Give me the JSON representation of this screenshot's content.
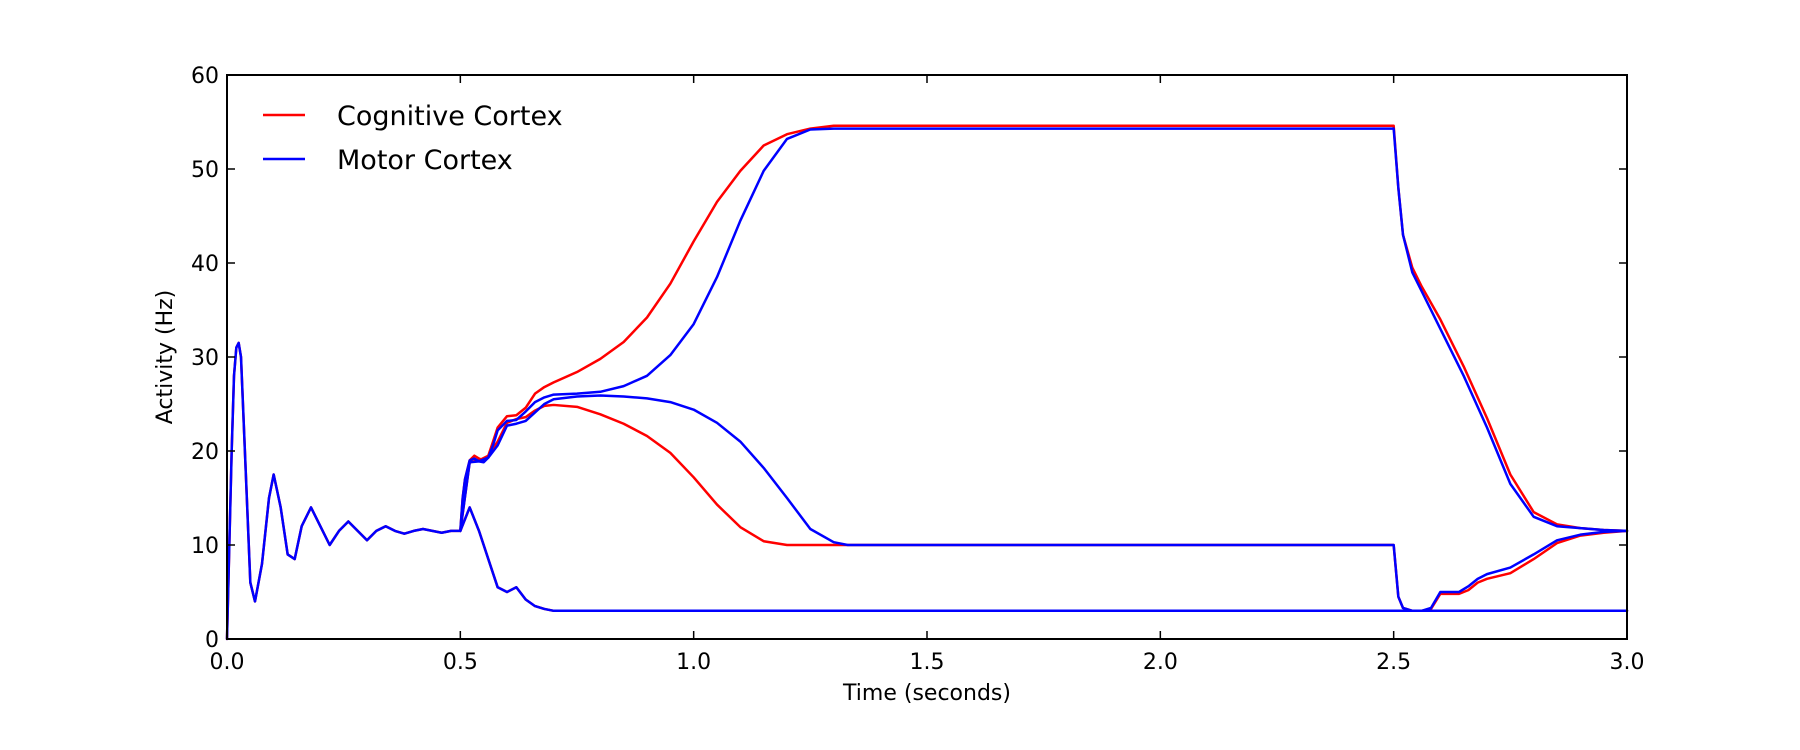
{
  "chart_data": {
    "type": "line",
    "xlabel": "Time (seconds)",
    "ylabel": "Activity (Hz)",
    "xlim": [
      0.0,
      3.0
    ],
    "ylim": [
      0,
      60
    ],
    "xticks": [
      "0.0",
      "0.5",
      "1.0",
      "1.5",
      "2.0",
      "2.5",
      "3.0"
    ],
    "yticks": [
      "0",
      "10",
      "20",
      "30",
      "40",
      "50",
      "60"
    ],
    "grid": false,
    "legend": {
      "position": "top-left",
      "entries": [
        {
          "name": "Cognitive Cortex",
          "color": "#ff0000"
        },
        {
          "name": "Motor Cortex",
          "color": "#0000ff"
        }
      ]
    },
    "series": [
      {
        "name": "Cognitive Cortex",
        "color": "#ff0000",
        "x": [
          0.0,
          0.005,
          0.01,
          0.015,
          0.02,
          0.025,
          0.03,
          0.04,
          0.05,
          0.06,
          0.075,
          0.09,
          0.1,
          0.115,
          0.13,
          0.145,
          0.16,
          0.18,
          0.2,
          0.22,
          0.24,
          0.26,
          0.28,
          0.3,
          0.32,
          0.34,
          0.36,
          0.38,
          0.4,
          0.42,
          0.44,
          0.46,
          0.48,
          0.5,
          0.505,
          0.51,
          0.52,
          0.53,
          0.54,
          0.55,
          0.56,
          0.57,
          0.58,
          0.6,
          0.62,
          0.64,
          0.66,
          0.68,
          0.7,
          0.75,
          0.8,
          0.85,
          0.9,
          0.95,
          1.0,
          1.05,
          1.1,
          1.15,
          1.2,
          1.25,
          1.3,
          1.35,
          1.4,
          1.5,
          2.0,
          2.49,
          2.5,
          2.51,
          2.52,
          2.54,
          2.56,
          2.6,
          2.65,
          2.7,
          2.75,
          2.8,
          2.85,
          2.9,
          2.95,
          3.0
        ],
        "y": [
          0,
          10,
          20,
          28,
          31,
          31.5,
          30,
          18,
          6,
          4,
          8,
          15,
          17.5,
          14,
          9,
          8.5,
          12,
          14,
          12,
          10,
          11.5,
          12.5,
          11.5,
          10.5,
          11.5,
          12.0,
          11.5,
          11.2,
          11.5,
          11.7,
          11.5,
          11.3,
          11.5,
          11.5,
          15,
          17,
          19,
          19.5,
          19.2,
          19,
          19.5,
          21,
          22.5,
          23.7,
          23.8,
          24.6,
          26.1,
          26.8,
          27.3,
          28.4,
          29.8,
          31.6,
          34.2,
          37.8,
          42.3,
          46.5,
          49.8,
          52.5,
          53.7,
          54.3,
          54.6,
          54.6,
          54.6,
          54.6,
          54.6,
          54.6,
          54.6,
          48,
          43,
          39.5,
          37.5,
          34,
          29,
          23.5,
          17.5,
          13.5,
          12.2,
          11.8,
          11.6,
          11.5
        ]
      },
      {
        "name": "Cognitive Cortex",
        "color": "#ff0000",
        "x": [
          0.5,
          0.52,
          0.54,
          0.56,
          0.58,
          0.6,
          0.62,
          0.64,
          0.66,
          0.68,
          0.7,
          0.75,
          0.8,
          0.85,
          0.9,
          0.95,
          1.0,
          1.05,
          1.1,
          1.15,
          1.2,
          1.23,
          1.25,
          1.3,
          1.5,
          2.0,
          2.49,
          2.5,
          2.51,
          2.52,
          2.53,
          2.55,
          2.57,
          2.6,
          2.62,
          2.65,
          2.7,
          2.75,
          2.8,
          2.85,
          2.9,
          2.95,
          3.0
        ],
        "y": [
          11.5,
          14,
          11.5,
          8.5,
          5.5,
          5.0,
          5.5,
          4.2,
          3.5,
          3.2,
          3.0,
          3.0,
          3.0,
          3.0,
          3.0,
          3.0,
          3.0,
          3.0,
          3.0,
          3.0,
          3.0,
          3.0,
          3.0,
          3.0,
          3.0,
          3.0,
          3.0,
          3.0,
          3.0,
          3.0,
          3.0,
          3.0,
          3.0,
          3.0,
          3.0,
          3.0,
          3.0,
          3.0,
          3.0,
          3.0,
          3.0,
          3.0,
          3.0
        ]
      },
      {
        "name": "Cognitive Cortex",
        "color": "#ff0000",
        "x": [
          0.5,
          0.52,
          0.54,
          0.56,
          0.58,
          0.6,
          0.62,
          0.64,
          0.66,
          0.68,
          0.7,
          0.75,
          0.8,
          0.85,
          0.9,
          0.95,
          1.0,
          1.05,
          1.1,
          1.15,
          1.2,
          1.23,
          1.25,
          1.3,
          1.5,
          2.0,
          2.49,
          2.5,
          2.51,
          2.52,
          2.54,
          2.56,
          2.58,
          2.6,
          2.62,
          2.64,
          2.66,
          2.68,
          2.7,
          2.75,
          2.8,
          2.85,
          2.9,
          2.95,
          3.0
        ],
        "y": [
          11.5,
          18.8,
          19.0,
          19.5,
          21.0,
          23.0,
          23.4,
          23.6,
          24.3,
          24.8,
          24.9,
          24.7,
          23.9,
          22.9,
          21.6,
          19.8,
          17.2,
          14.3,
          11.9,
          10.4,
          10.0,
          10.0,
          10.0,
          10.0,
          10.0,
          10.0,
          10.0,
          10.0,
          4.5,
          3.3,
          3.0,
          3.0,
          3.2,
          4.8,
          4.8,
          4.8,
          5.2,
          6.0,
          6.4,
          7.0,
          8.5,
          10.2,
          11.0,
          11.3,
          11.5
        ]
      },
      {
        "name": "Motor Cortex",
        "color": "#0000ff",
        "x": [
          0.0,
          0.005,
          0.01,
          0.015,
          0.02,
          0.025,
          0.03,
          0.04,
          0.05,
          0.06,
          0.075,
          0.09,
          0.1,
          0.115,
          0.13,
          0.145,
          0.16,
          0.18,
          0.2,
          0.22,
          0.24,
          0.26,
          0.28,
          0.3,
          0.32,
          0.34,
          0.36,
          0.38,
          0.4,
          0.42,
          0.44,
          0.46,
          0.48,
          0.5,
          0.505,
          0.51,
          0.52,
          0.53,
          0.54,
          0.55,
          0.56,
          0.57,
          0.58,
          0.6,
          0.62,
          0.64,
          0.66,
          0.68,
          0.7,
          0.75,
          0.8,
          0.85,
          0.9,
          0.95,
          1.0,
          1.05,
          1.1,
          1.15,
          1.2,
          1.25,
          1.3,
          1.35,
          1.4,
          1.5,
          2.0,
          2.49,
          2.5,
          2.51,
          2.52,
          2.54,
          2.56,
          2.6,
          2.65,
          2.7,
          2.75,
          2.8,
          2.85,
          2.9,
          2.95,
          3.0
        ],
        "y": [
          0,
          10,
          20,
          28,
          31,
          31.5,
          30,
          18,
          6,
          4,
          8,
          15,
          17.5,
          14,
          9,
          8.5,
          12,
          14,
          12,
          10,
          11.5,
          12.5,
          11.5,
          10.5,
          11.5,
          12.0,
          11.5,
          11.2,
          11.5,
          11.7,
          11.5,
          11.3,
          11.5,
          11.5,
          15,
          17,
          19,
          19.2,
          18.9,
          18.8,
          19.3,
          20.6,
          22.2,
          23.2,
          23.3,
          24.2,
          25.2,
          25.7,
          26.0,
          26.1,
          26.3,
          26.9,
          28.0,
          30.2,
          33.5,
          38.5,
          44.5,
          49.8,
          53.2,
          54.2,
          54.3,
          54.3,
          54.3,
          54.3,
          54.3,
          54.3,
          54.3,
          48,
          43,
          39,
          37,
          33,
          28,
          22.5,
          16.5,
          13.0,
          12.0,
          11.8,
          11.6,
          11.5
        ]
      },
      {
        "name": "Motor Cortex",
        "color": "#0000ff",
        "x": [
          0.5,
          0.52,
          0.54,
          0.56,
          0.58,
          0.6,
          0.62,
          0.64,
          0.66,
          0.68,
          0.7,
          0.75,
          0.8,
          0.85,
          0.9,
          0.95,
          1.0,
          1.05,
          1.1,
          1.15,
          1.2,
          1.25,
          1.3,
          1.5,
          2.0,
          2.49,
          2.5,
          2.51,
          2.52,
          2.53,
          2.55,
          2.57,
          2.6,
          2.62,
          2.65,
          2.7,
          2.75,
          2.8,
          2.85,
          2.9,
          2.95,
          3.0
        ],
        "y": [
          11.5,
          14,
          11.5,
          8.5,
          5.5,
          5.0,
          5.5,
          4.2,
          3.5,
          3.2,
          3.0,
          3.0,
          3.0,
          3.0,
          3.0,
          3.0,
          3.0,
          3.0,
          3.0,
          3.0,
          3.0,
          3.0,
          3.0,
          3.0,
          3.0,
          3.0,
          3.0,
          3.0,
          3.0,
          3.0,
          3.0,
          3.0,
          3.0,
          3.0,
          3.0,
          3.0,
          3.0,
          3.0,
          3.0,
          3.0,
          3.0,
          3.0
        ]
      },
      {
        "name": "Motor Cortex",
        "color": "#0000ff",
        "x": [
          0.5,
          0.52,
          0.54,
          0.56,
          0.58,
          0.6,
          0.62,
          0.64,
          0.66,
          0.68,
          0.7,
          0.75,
          0.8,
          0.85,
          0.9,
          0.95,
          1.0,
          1.05,
          1.1,
          1.15,
          1.2,
          1.25,
          1.3,
          1.33,
          1.35,
          1.5,
          2.0,
          2.49,
          2.5,
          2.51,
          2.52,
          2.54,
          2.56,
          2.58,
          2.6,
          2.62,
          2.64,
          2.66,
          2.68,
          2.7,
          2.75,
          2.8,
          2.85,
          2.9,
          2.95,
          3.0
        ],
        "y": [
          11.5,
          18.8,
          18.9,
          19.3,
          20.6,
          22.7,
          22.9,
          23.2,
          24.1,
          25.0,
          25.5,
          25.8,
          25.9,
          25.8,
          25.6,
          25.2,
          24.4,
          23.0,
          21.0,
          18.2,
          15.0,
          11.7,
          10.3,
          10.0,
          10.0,
          10.0,
          10.0,
          10.0,
          10.0,
          4.5,
          3.3,
          3.0,
          3.0,
          3.3,
          5.0,
          5.0,
          5.0,
          5.6,
          6.4,
          6.9,
          7.6,
          9.0,
          10.5,
          11.1,
          11.4,
          11.5
        ]
      }
    ]
  }
}
